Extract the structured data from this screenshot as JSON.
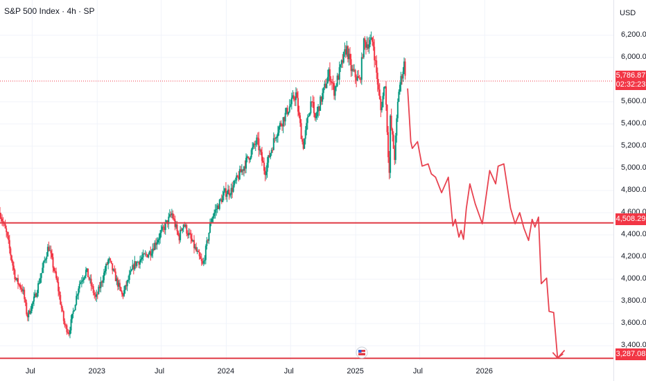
{
  "title": "S&P 500 Index · 4h · SP",
  "currency": "USD",
  "colors": {
    "up": "#089981",
    "down": "#f23645",
    "projection": "#e8424f",
    "line": "#e03a45",
    "grid": "#f0f3fa"
  },
  "price_badge": {
    "value": "5,786.87",
    "countdown": "02:32:23"
  },
  "level_badges": [
    "4,508.29",
    "3,287.08"
  ],
  "icons": {
    "flag": "us-flag-icon"
  },
  "chart_data": {
    "type": "line",
    "title": "S&P 500 Index · 4h · SP",
    "ylim": [
      3270,
      6330
    ],
    "y_ticks": [
      "6,200.00",
      "6,000.00",
      "5,600.00",
      "5,400.00",
      "5,200.00",
      "5,000.00",
      "4,800.00",
      "4,600.00",
      "4,400.00",
      "4,200.00",
      "4,000.00",
      "3,800.00",
      "3,600.00",
      "3,400.00"
    ],
    "y_tick_values": [
      6200,
      6000,
      5600,
      5400,
      5200,
      5000,
      4800,
      4600,
      4400,
      4200,
      4000,
      3800,
      3600,
      3400
    ],
    "x_ticks": [
      "Jul",
      "2023",
      "Jul",
      "2024",
      "Jul",
      "2025",
      "Jul",
      "2026"
    ],
    "x_tick_dates": [
      "2022-07-01",
      "2023-01-01",
      "2023-07-01",
      "2024-01-01",
      "2024-07-01",
      "2025-01-01",
      "2025-07-01",
      "2026-01-01"
    ],
    "x_range": [
      "2022-04-01",
      "2026-12-31"
    ],
    "horizontal_levels": [
      4508.29,
      3287.08
    ],
    "current_price": 5786.87,
    "price_anchors": [
      [
        "2022-04-01",
        4600
      ],
      [
        "2022-04-20",
        4400
      ],
      [
        "2022-05-15",
        4000
      ],
      [
        "2022-06-05",
        3900
      ],
      [
        "2022-06-17",
        3660
      ],
      [
        "2022-07-10",
        3850
      ],
      [
        "2022-08-16",
        4300
      ],
      [
        "2022-09-10",
        3960
      ],
      [
        "2022-09-30",
        3590
      ],
      [
        "2022-10-13",
        3520
      ],
      [
        "2022-11-10",
        3950
      ],
      [
        "2022-12-01",
        4080
      ],
      [
        "2022-12-28",
        3820
      ],
      [
        "2023-02-02",
        4180
      ],
      [
        "2023-03-13",
        3850
      ],
      [
        "2023-04-15",
        4130
      ],
      [
        "2023-06-01",
        4250
      ],
      [
        "2023-07-31",
        4590
      ],
      [
        "2023-08-20",
        4370
      ],
      [
        "2023-09-01",
        4510
      ],
      [
        "2023-10-27",
        4120
      ],
      [
        "2023-11-20",
        4550
      ],
      [
        "2023-12-28",
        4780
      ],
      [
        "2024-01-15",
        4800
      ],
      [
        "2024-03-28",
        5250
      ],
      [
        "2024-04-19",
        4970
      ],
      [
        "2024-05-21",
        5320
      ],
      [
        "2024-07-16",
        5670
      ],
      [
        "2024-08-05",
        5190
      ],
      [
        "2024-08-30",
        5650
      ],
      [
        "2024-09-06",
        5420
      ],
      [
        "2024-10-18",
        5860
      ],
      [
        "2024-11-01",
        5700
      ],
      [
        "2024-12-06",
        6090
      ],
      [
        "2024-12-20",
        5880
      ],
      [
        "2025-01-13",
        5780
      ],
      [
        "2025-01-23",
        6120
      ],
      [
        "2025-02-19",
        6140
      ],
      [
        "2025-03-13",
        5520
      ],
      [
        "2025-03-25",
        5780
      ],
      [
        "2025-04-04",
        5070
      ],
      [
        "2025-04-08",
        4840
      ],
      [
        "2025-04-09",
        5440
      ],
      [
        "2025-04-21",
        5100
      ],
      [
        "2025-05-02",
        5690
      ],
      [
        "2025-05-19",
        5960
      ],
      [
        "2025-05-23",
        5786.87
      ]
    ],
    "projection": [
      [
        "2025-05-28",
        5720
      ],
      [
        "2025-06-06",
        5240
      ],
      [
        "2025-06-10",
        5180
      ],
      [
        "2025-06-25",
        5240
      ],
      [
        "2025-07-08",
        5020
      ],
      [
        "2025-07-25",
        5040
      ],
      [
        "2025-08-03",
        4950
      ],
      [
        "2025-08-15",
        4920
      ],
      [
        "2025-09-01",
        4780
      ],
      [
        "2025-09-20",
        4920
      ],
      [
        "2025-10-03",
        4480
      ],
      [
        "2025-10-10",
        4540
      ],
      [
        "2025-10-20",
        4380
      ],
      [
        "2025-10-26",
        4440
      ],
      [
        "2025-11-02",
        4360
      ],
      [
        "2025-11-10",
        4640
      ],
      [
        "2025-11-20",
        4860
      ],
      [
        "2025-12-05",
        4680
      ],
      [
        "2025-12-25",
        4500
      ],
      [
        "2026-01-15",
        4980
      ],
      [
        "2026-02-01",
        4860
      ],
      [
        "2026-02-08",
        5020
      ],
      [
        "2026-02-24",
        5040
      ],
      [
        "2026-03-15",
        4640
      ],
      [
        "2026-03-28",
        4500
      ],
      [
        "2026-04-10",
        4600
      ],
      [
        "2026-04-22",
        4460
      ],
      [
        "2026-05-05",
        4350
      ],
      [
        "2026-05-15",
        4540
      ],
      [
        "2026-05-23",
        4470
      ],
      [
        "2026-06-02",
        4560
      ],
      [
        "2026-06-10",
        3960
      ],
      [
        "2026-06-25",
        4010
      ],
      [
        "2026-07-02",
        3710
      ],
      [
        "2026-07-15",
        3700
      ],
      [
        "2026-07-26",
        3290
      ],
      [
        "2026-08-15",
        3360
      ]
    ]
  }
}
